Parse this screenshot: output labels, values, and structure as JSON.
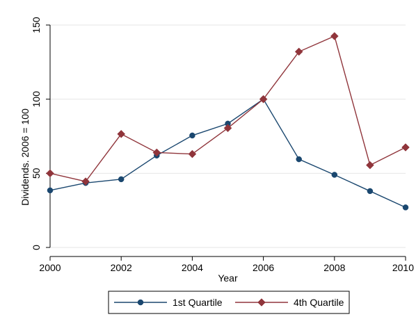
{
  "chart_data": {
    "type": "line",
    "title": "",
    "xlabel": "Year",
    "ylabel": "Dividends. 2006 = 100",
    "x": [
      2000,
      2001,
      2002,
      2003,
      2004,
      2005,
      2006,
      2007,
      2008,
      2009,
      2010
    ],
    "xlim": [
      2000,
      2010
    ],
    "ylim": [
      0,
      150
    ],
    "x_ticks": [
      2000,
      2002,
      2004,
      2006,
      2008,
      2010
    ],
    "x_tick_labels": [
      "2000",
      "2002",
      "2004",
      "2006",
      "2008",
      "2010"
    ],
    "y_ticks": [
      0,
      50,
      100,
      150
    ],
    "y_tick_labels": [
      "0",
      "50",
      "100",
      "150"
    ],
    "grid": "horizontal",
    "legend_position": "bottom",
    "series": [
      {
        "name": "1st Quartile",
        "marker": "circle",
        "color": "#1a476f",
        "values": [
          38.5,
          43.5,
          46,
          62,
          75.5,
          83.5,
          100,
          59.5,
          49,
          38,
          27
        ]
      },
      {
        "name": "4th Quartile",
        "marker": "diamond",
        "color": "#90353b",
        "values": [
          50,
          44.5,
          76.5,
          64,
          63,
          80.5,
          100,
          132,
          142.5,
          55.5,
          67.5
        ]
      }
    ]
  }
}
